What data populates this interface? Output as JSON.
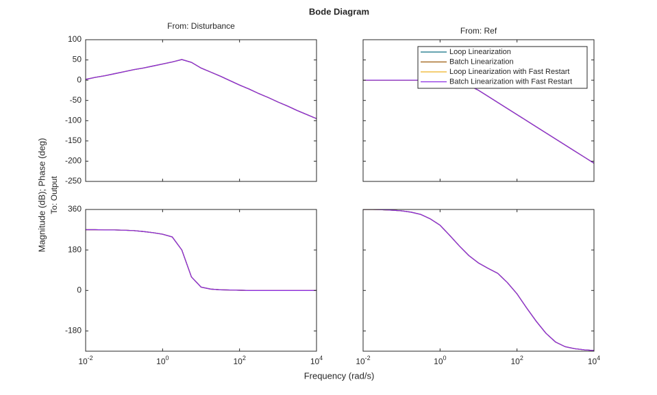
{
  "figure": {
    "title": "Bode Diagram",
    "xlabel": "Frequency (rad/s)",
    "ylabel": "Magnitude (dB); Phase (deg)",
    "row_label": "To: Output"
  },
  "chart_data": [
    {
      "type": "line",
      "title": "From: Disturbance",
      "xscale": "log",
      "xlim": [
        0.01,
        10000
      ],
      "ylim": [
        -250,
        100
      ],
      "xticks": [
        {
          "value": 0.01,
          "label": "10-2"
        },
        {
          "value": 1,
          "label": "100"
        },
        {
          "value": 100,
          "label": "102"
        },
        {
          "value": 10000,
          "label": "104"
        }
      ],
      "show_xtick_labels": false,
      "yticks": [
        -250,
        -200,
        -150,
        -100,
        -50,
        0,
        50,
        100
      ],
      "show_ytick_labels": true,
      "x": [
        0.01,
        0.0178,
        0.0316,
        0.0562,
        0.1,
        0.178,
        0.316,
        0.562,
        1,
        1.78,
        3.16,
        5.62,
        10,
        17.8,
        31.6,
        56.2,
        100,
        178,
        316,
        562,
        1000,
        1780,
        3160,
        5620,
        10000
      ],
      "series": [
        {
          "name": "Loop Linearization",
          "color": "#0b6e80",
          "values": [
            2,
            7,
            11,
            16,
            21,
            26,
            30,
            35,
            40,
            45,
            51,
            44,
            30,
            20,
            10,
            -1,
            -12,
            -22,
            -33,
            -43,
            -54,
            -64,
            -75,
            -85,
            -95
          ]
        },
        {
          "name": "Batch Linearization",
          "color": "#9b5a0a",
          "values": [
            2,
            7,
            11,
            16,
            21,
            26,
            30,
            35,
            40,
            45,
            51,
            44,
            30,
            20,
            10,
            -1,
            -12,
            -22,
            -33,
            -43,
            -54,
            -64,
            -75,
            -85,
            -95
          ]
        },
        {
          "name": "Loop Linearization with Fast Restart",
          "color": "#edb120",
          "values": [
            2,
            7,
            11,
            16,
            21,
            26,
            30,
            35,
            40,
            45,
            51,
            44,
            30,
            20,
            10,
            -1,
            -12,
            -22,
            -33,
            -43,
            -54,
            -64,
            -75,
            -85,
            -95
          ]
        },
        {
          "name": "Batch Linearization with Fast Restart",
          "color": "#8a2be2",
          "values": [
            2,
            7,
            11,
            16,
            21,
            26,
            30,
            35,
            40,
            45,
            51,
            44,
            30,
            20,
            10,
            -1,
            -12,
            -22,
            -33,
            -43,
            -54,
            -64,
            -75,
            -85,
            -95
          ]
        }
      ]
    },
    {
      "type": "line",
      "title": "From: Ref",
      "xscale": "log",
      "xlim": [
        0.01,
        10000
      ],
      "ylim": [
        -250,
        100
      ],
      "legend": "upper right",
      "xticks": [
        {
          "value": 0.01,
          "label": "10-2"
        },
        {
          "value": 1,
          "label": "100"
        },
        {
          "value": 100,
          "label": "102"
        },
        {
          "value": 10000,
          "label": "104"
        }
      ],
      "show_xtick_labels": false,
      "yticks": [
        -250,
        -200,
        -150,
        -100,
        -50,
        0,
        50,
        100
      ],
      "show_ytick_labels": false,
      "x": [
        0.01,
        0.0178,
        0.0316,
        0.0562,
        0.1,
        0.178,
        0.316,
        0.562,
        1,
        1.78,
        3.16,
        5.62,
        10,
        17.8,
        31.6,
        56.2,
        100,
        178,
        316,
        562,
        1000,
        1780,
        3160,
        5620,
        10000
      ],
      "series": [
        {
          "name": "Loop Linearization",
          "color": "#0b6e80",
          "values": [
            0,
            0,
            0,
            0,
            0,
            0,
            0,
            0,
            0,
            -1,
            -5,
            -13,
            -25,
            -40,
            -55,
            -70,
            -85,
            -100,
            -115,
            -130,
            -145,
            -160,
            -175,
            -190,
            -205
          ]
        },
        {
          "name": "Batch Linearization",
          "color": "#9b5a0a",
          "values": [
            0,
            0,
            0,
            0,
            0,
            0,
            0,
            0,
            0,
            -1,
            -5,
            -13,
            -25,
            -40,
            -55,
            -70,
            -85,
            -100,
            -115,
            -130,
            -145,
            -160,
            -175,
            -190,
            -205
          ]
        },
        {
          "name": "Loop Linearization with Fast Restart",
          "color": "#edb120",
          "values": [
            0,
            0,
            0,
            0,
            0,
            0,
            0,
            0,
            0,
            -1,
            -5,
            -13,
            -25,
            -40,
            -55,
            -70,
            -85,
            -100,
            -115,
            -130,
            -145,
            -160,
            -175,
            -190,
            -205
          ]
        },
        {
          "name": "Batch Linearization with Fast Restart",
          "color": "#8a2be2",
          "values": [
            0,
            0,
            0,
            0,
            0,
            0,
            0,
            0,
            0,
            -1,
            -5,
            -13,
            -25,
            -40,
            -55,
            -70,
            -85,
            -100,
            -115,
            -130,
            -145,
            -160,
            -175,
            -190,
            -205
          ]
        }
      ]
    },
    {
      "type": "line",
      "xscale": "log",
      "xlim": [
        0.01,
        10000
      ],
      "ylim": [
        -270,
        360
      ],
      "xticks": [
        {
          "value": 0.01,
          "label": "10-2"
        },
        {
          "value": 1,
          "label": "100"
        },
        {
          "value": 100,
          "label": "102"
        },
        {
          "value": 10000,
          "label": "104"
        }
      ],
      "show_xtick_labels": true,
      "yticks": [
        -180,
        0,
        180,
        360
      ],
      "show_ytick_labels": true,
      "x": [
        0.01,
        0.0178,
        0.0316,
        0.0562,
        0.1,
        0.178,
        0.316,
        0.562,
        1,
        1.78,
        3.16,
        5.62,
        10,
        17.8,
        31.6,
        56.2,
        100,
        178,
        316,
        562,
        1000,
        1780,
        3160,
        5620,
        10000
      ],
      "series": [
        {
          "name": "Loop Linearization",
          "color": "#0b6e80",
          "values": [
            270,
            270,
            269,
            269,
            268,
            266,
            262,
            257,
            250,
            238,
            180,
            60,
            15,
            6,
            3,
            2,
            1,
            0,
            0,
            0,
            0,
            0,
            0,
            0,
            0
          ]
        },
        {
          "name": "Batch Linearization",
          "color": "#9b5a0a",
          "values": [
            270,
            270,
            269,
            269,
            268,
            266,
            262,
            257,
            250,
            238,
            180,
            60,
            15,
            6,
            3,
            2,
            1,
            0,
            0,
            0,
            0,
            0,
            0,
            0,
            0
          ]
        },
        {
          "name": "Loop Linearization with Fast Restart",
          "color": "#edb120",
          "values": [
            270,
            270,
            269,
            269,
            268,
            266,
            262,
            257,
            250,
            238,
            180,
            60,
            15,
            6,
            3,
            2,
            1,
            0,
            0,
            0,
            0,
            0,
            0,
            0,
            0
          ]
        },
        {
          "name": "Batch Linearization with Fast Restart",
          "color": "#8a2be2",
          "values": [
            270,
            270,
            269,
            269,
            268,
            266,
            262,
            257,
            250,
            238,
            180,
            60,
            15,
            6,
            3,
            2,
            1,
            0,
            0,
            0,
            0,
            0,
            0,
            0,
            0
          ]
        }
      ]
    },
    {
      "type": "line",
      "xscale": "log",
      "xlim": [
        0.01,
        10000
      ],
      "ylim": [
        -270,
        360
      ],
      "xticks": [
        {
          "value": 0.01,
          "label": "10-2"
        },
        {
          "value": 1,
          "label": "100"
        },
        {
          "value": 100,
          "label": "102"
        },
        {
          "value": 10000,
          "label": "104"
        }
      ],
      "show_xtick_labels": true,
      "yticks": [
        -180,
        0,
        180,
        360
      ],
      "show_ytick_labels": false,
      "x": [
        0.01,
        0.0178,
        0.0316,
        0.0562,
        0.1,
        0.178,
        0.316,
        0.562,
        1,
        1.78,
        3.16,
        5.62,
        10,
        17.8,
        31.6,
        56.2,
        100,
        178,
        316,
        562,
        1000,
        1780,
        3160,
        5620,
        10000
      ],
      "series": [
        {
          "name": "Loop Linearization",
          "color": "#0b6e80",
          "values": [
            360,
            360,
            359,
            357,
            354,
            348,
            338,
            318,
            290,
            245,
            198,
            155,
            122,
            98,
            76,
            35,
            -15,
            -78,
            -137,
            -190,
            -229,
            -250,
            -259,
            -264,
            -267
          ]
        },
        {
          "name": "Batch Linearization",
          "color": "#9b5a0a",
          "values": [
            360,
            360,
            359,
            357,
            354,
            348,
            338,
            318,
            290,
            245,
            198,
            155,
            122,
            98,
            76,
            35,
            -15,
            -78,
            -137,
            -190,
            -229,
            -250,
            -259,
            -264,
            -267
          ]
        },
        {
          "name": "Loop Linearization with Fast Restart",
          "color": "#edb120",
          "values": [
            360,
            360,
            359,
            357,
            354,
            348,
            338,
            318,
            290,
            245,
            198,
            155,
            122,
            98,
            76,
            35,
            -15,
            -78,
            -137,
            -190,
            -229,
            -250,
            -259,
            -264,
            -267
          ]
        },
        {
          "name": "Batch Linearization with Fast Restart",
          "color": "#8a2be2",
          "values": [
            360,
            360,
            359,
            357,
            354,
            348,
            338,
            318,
            290,
            245,
            198,
            155,
            122,
            98,
            76,
            35,
            -15,
            -78,
            -137,
            -190,
            -229,
            -250,
            -259,
            -264,
            -267
          ]
        }
      ]
    }
  ]
}
